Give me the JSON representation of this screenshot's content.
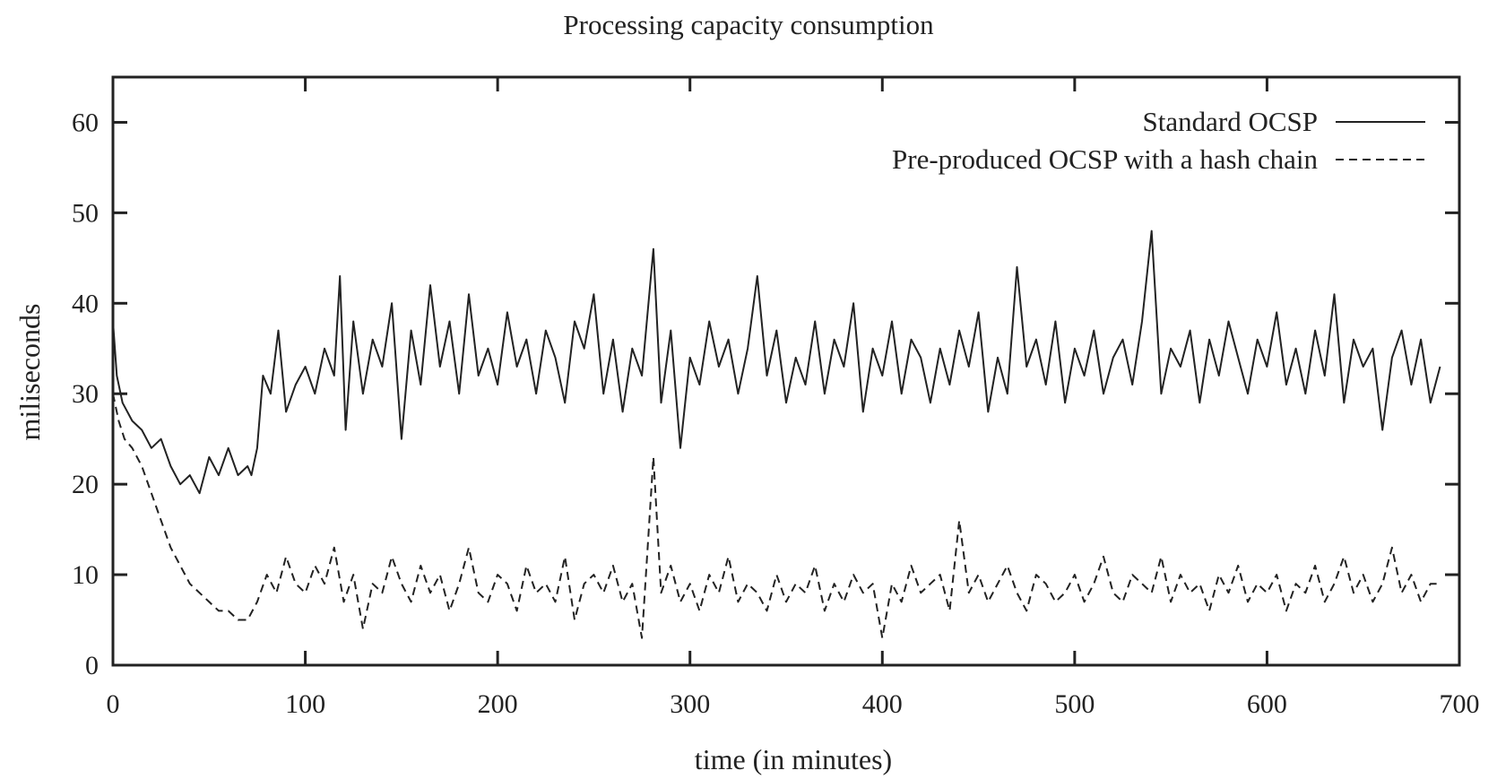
{
  "chart_data": {
    "type": "line",
    "title": "Processing capacity consumption",
    "xlabel": "time (in minutes)",
    "ylabel": "miliseconds",
    "xlim": [
      0,
      700
    ],
    "ylim": [
      0,
      65
    ],
    "x_ticks": [
      "0",
      "100",
      "200",
      "300",
      "400",
      "500",
      "600",
      "700"
    ],
    "y_ticks": [
      "0",
      "10",
      "20",
      "30",
      "40",
      "50",
      "60"
    ],
    "grid": false,
    "legend_position": "top-right",
    "series": [
      {
        "name": "Standard OCSP",
        "style": "solid",
        "color": "#222222",
        "x": [
          0,
          2,
          5,
          10,
          15,
          20,
          25,
          30,
          35,
          40,
          45,
          50,
          55,
          60,
          65,
          70,
          72,
          75,
          78,
          82,
          86,
          90,
          95,
          100,
          105,
          110,
          115,
          118,
          121,
          125,
          130,
          135,
          140,
          145,
          150,
          155,
          160,
          165,
          170,
          175,
          180,
          185,
          190,
          195,
          200,
          205,
          210,
          215,
          220,
          225,
          230,
          235,
          240,
          245,
          250,
          255,
          260,
          265,
          270,
          275,
          281,
          285,
          290,
          295,
          300,
          305,
          310,
          315,
          320,
          325,
          330,
          335,
          340,
          345,
          350,
          355,
          360,
          365,
          370,
          375,
          380,
          385,
          390,
          395,
          400,
          405,
          410,
          415,
          420,
          425,
          430,
          435,
          440,
          445,
          450,
          455,
          460,
          465,
          470,
          475,
          480,
          485,
          490,
          495,
          500,
          505,
          510,
          515,
          520,
          525,
          530,
          535,
          540,
          545,
          550,
          555,
          560,
          565,
          570,
          575,
          580,
          585,
          590,
          595,
          600,
          605,
          610,
          615,
          620,
          625,
          630,
          635,
          640,
          645,
          650,
          655,
          660,
          665,
          670,
          675,
          680,
          685,
          690
        ],
        "y": [
          38,
          32,
          29,
          27,
          26,
          24,
          25,
          22,
          20,
          21,
          19,
          23,
          21,
          24,
          21,
          22,
          21,
          24,
          32,
          30,
          37,
          28,
          31,
          33,
          30,
          35,
          32,
          43,
          26,
          38,
          30,
          36,
          33,
          40,
          25,
          37,
          31,
          42,
          33,
          38,
          30,
          41,
          32,
          35,
          31,
          39,
          33,
          36,
          30,
          37,
          34,
          29,
          38,
          35,
          41,
          30,
          36,
          28,
          35,
          32,
          46,
          29,
          37,
          24,
          34,
          31,
          38,
          33,
          36,
          30,
          35,
          43,
          32,
          37,
          29,
          34,
          31,
          38,
          30,
          36,
          33,
          40,
          28,
          35,
          32,
          38,
          30,
          36,
          34,
          29,
          35,
          31,
          37,
          33,
          39,
          28,
          34,
          30,
          44,
          33,
          36,
          31,
          38,
          29,
          35,
          32,
          37,
          30,
          34,
          36,
          31,
          38,
          48,
          30,
          35,
          33,
          37,
          29,
          36,
          32,
          38,
          34,
          30,
          36,
          33,
          39,
          31,
          35,
          30,
          37,
          32,
          41,
          29,
          36,
          33,
          35,
          26,
          34,
          37,
          31,
          36,
          29,
          33
        ]
      },
      {
        "name": "Pre-produced OCSP with a hash chain",
        "style": "dashed",
        "color": "#222222",
        "x": [
          0,
          3,
          6,
          10,
          15,
          20,
          25,
          30,
          35,
          40,
          45,
          50,
          55,
          60,
          65,
          70,
          75,
          80,
          85,
          90,
          95,
          100,
          105,
          110,
          115,
          120,
          125,
          130,
          135,
          140,
          145,
          150,
          155,
          160,
          165,
          170,
          175,
          180,
          185,
          190,
          195,
          200,
          205,
          210,
          215,
          220,
          225,
          230,
          235,
          240,
          245,
          250,
          255,
          260,
          265,
          270,
          275,
          281,
          285,
          290,
          295,
          300,
          305,
          310,
          315,
          320,
          325,
          330,
          335,
          340,
          345,
          350,
          355,
          360,
          365,
          370,
          375,
          380,
          385,
          390,
          395,
          400,
          405,
          410,
          415,
          420,
          425,
          430,
          435,
          440,
          445,
          450,
          455,
          460,
          465,
          470,
          475,
          480,
          485,
          490,
          495,
          500,
          505,
          510,
          515,
          520,
          525,
          530,
          535,
          540,
          545,
          550,
          555,
          560,
          565,
          570,
          575,
          580,
          585,
          590,
          595,
          600,
          605,
          610,
          615,
          620,
          625,
          630,
          635,
          640,
          645,
          650,
          655,
          660,
          665,
          670,
          675,
          680,
          685,
          690
        ],
        "y": [
          30,
          27,
          25,
          24,
          22,
          19,
          16,
          13,
          11,
          9,
          8,
          7,
          6,
          6,
          5,
          5,
          7,
          10,
          8,
          12,
          9,
          8,
          11,
          9,
          13,
          7,
          10,
          4,
          9,
          8,
          12,
          9,
          7,
          11,
          8,
          10,
          6,
          9,
          13,
          8,
          7,
          10,
          9,
          6,
          11,
          8,
          9,
          7,
          12,
          5,
          9,
          10,
          8,
          11,
          7,
          9,
          3,
          23,
          8,
          11,
          7,
          9,
          6,
          10,
          8,
          12,
          7,
          9,
          8,
          6,
          10,
          7,
          9,
          8,
          11,
          6,
          9,
          7,
          10,
          8,
          9,
          3,
          9,
          7,
          11,
          8,
          9,
          10,
          6,
          16,
          8,
          10,
          7,
          9,
          11,
          8,
          6,
          10,
          9,
          7,
          8,
          10,
          7,
          9,
          12,
          8,
          7,
          10,
          9,
          8,
          12,
          7,
          10,
          8,
          9,
          6,
          10,
          8,
          11,
          7,
          9,
          8,
          10,
          6,
          9,
          8,
          11,
          7,
          9,
          12,
          8,
          10,
          7,
          9,
          13,
          8,
          10,
          7,
          9,
          9
        ]
      }
    ]
  }
}
